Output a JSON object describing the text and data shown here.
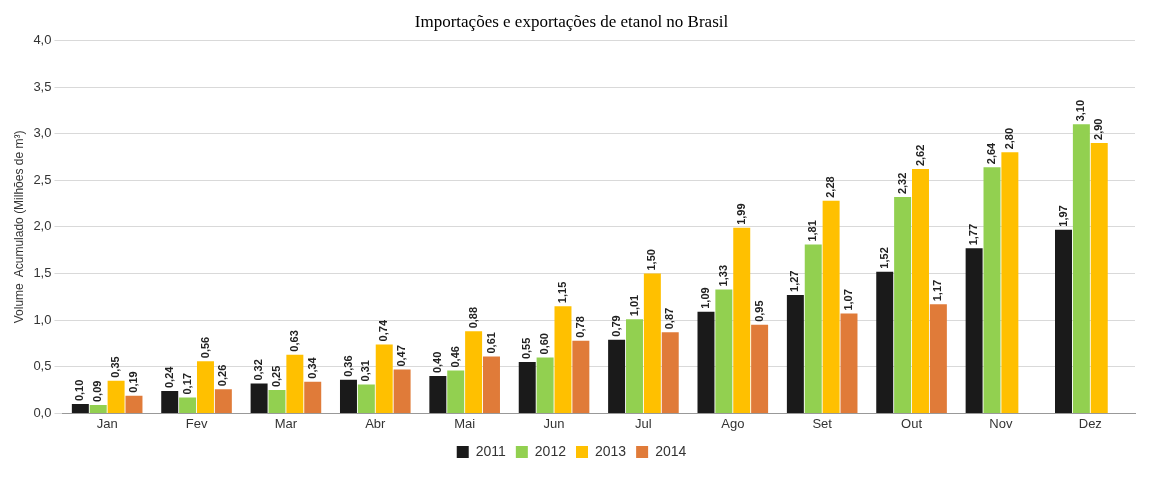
{
  "chart_data": {
    "type": "bar",
    "title": "Importações e exportações de etanol no Brasil",
    "ylabel": "Volume  Acumulado (Milhões de m³)",
    "categories": [
      "Jan",
      "Fev",
      "Mar",
      "Abr",
      "Mai",
      "Jun",
      "Jul",
      "Ago",
      "Set",
      "Out",
      "Nov",
      "Dez"
    ],
    "series": [
      {
        "name": "2011",
        "color": "#1a1a1a",
        "values": [
          0.1,
          0.24,
          0.32,
          0.36,
          0.4,
          0.55,
          0.79,
          1.09,
          1.27,
          1.52,
          1.77,
          1.97
        ],
        "value_labels": [
          "0,10",
          "0,24",
          "0,32",
          "0,36",
          "0,40",
          "0,55",
          "0,79",
          "1,09",
          "1,27",
          "1,52",
          "1,77",
          "1,97"
        ]
      },
      {
        "name": "2012",
        "color": "#92d050",
        "values": [
          0.09,
          0.17,
          0.25,
          0.31,
          0.46,
          0.6,
          1.01,
          1.33,
          1.81,
          2.32,
          2.64,
          3.1
        ],
        "value_labels": [
          "0,09",
          "0,17",
          "0,25",
          "0,31",
          "0,46",
          "0,60",
          "1,01",
          "1,33",
          "1,81",
          "2,32",
          "2,64",
          "3,10"
        ]
      },
      {
        "name": "2013",
        "color": "#ffc000",
        "values": [
          0.35,
          0.56,
          0.63,
          0.74,
          0.88,
          1.15,
          1.5,
          1.99,
          2.28,
          2.62,
          2.8,
          2.9
        ],
        "value_labels": [
          "0,35",
          "0,56",
          "0,63",
          "0,74",
          "0,88",
          "1,15",
          "1,50",
          "1,99",
          "2,28",
          "2,62",
          "2,80",
          "2,90"
        ]
      },
      {
        "name": "2014",
        "color": "#e07b39",
        "values": [
          0.19,
          0.26,
          0.34,
          0.47,
          0.61,
          0.78,
          0.87,
          0.95,
          1.07,
          1.17,
          null,
          null
        ],
        "value_labels": [
          "0,19",
          "0,26",
          "0,34",
          "0,47",
          "0,61",
          "0,78",
          "0,87",
          "0,95",
          "1,07",
          "1,17",
          null,
          null
        ]
      }
    ],
    "ylim": [
      0,
      4
    ],
    "yticks": [
      {
        "value": 0,
        "label": "0,0"
      },
      {
        "value": 0.5,
        "label": "0,5"
      },
      {
        "value": 1,
        "label": "1,0"
      },
      {
        "value": 1.5,
        "label": "1,5"
      },
      {
        "value": 2,
        "label": "2,0"
      },
      {
        "value": 2.5,
        "label": "2,5"
      },
      {
        "value": 3,
        "label": "3,0"
      },
      {
        "value": 3.5,
        "label": "3,5"
      },
      {
        "value": 4,
        "label": "4,0"
      }
    ],
    "grid": "y",
    "legend": "bottom"
  }
}
